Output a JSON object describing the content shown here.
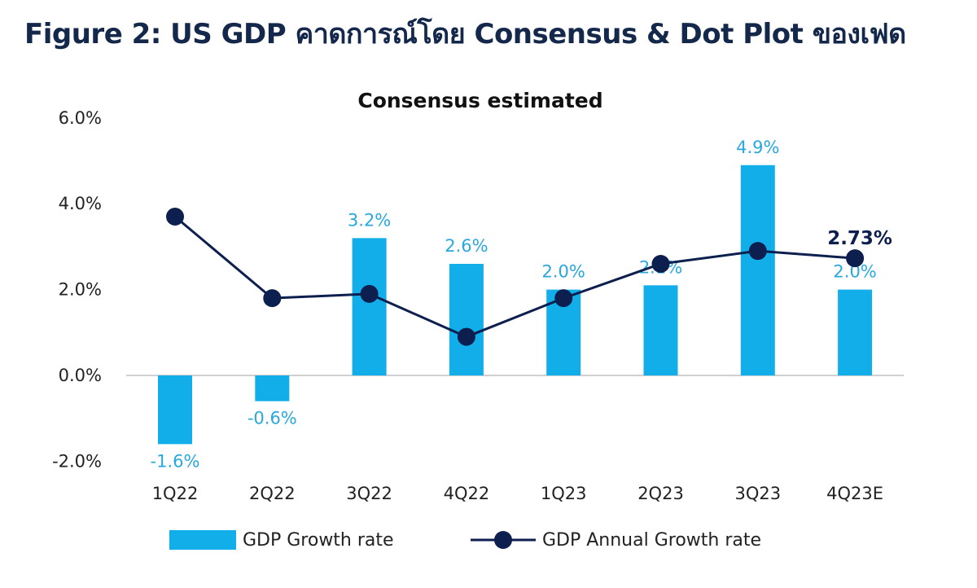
{
  "figure_title": "Figure 2: US GDP คาดการณ์โดย Consensus & Dot Plot ของเฟด",
  "colors": {
    "bar": "#12aeea",
    "line": "#0d1f4f",
    "bar_label": "#29a8df"
  },
  "chart_data": {
    "type": "bar+line",
    "title": "Consensus estimated",
    "categories": [
      "1Q22",
      "2Q22",
      "3Q22",
      "4Q22",
      "1Q23",
      "2Q23",
      "3Q23",
      "4Q23E"
    ],
    "ylim": [
      -2.0,
      6.0
    ],
    "yticks": [
      "-2.0%",
      "0.0%",
      "2.0%",
      "4.0%",
      "6.0%"
    ],
    "grid": false,
    "legend_position": "bottom",
    "series": [
      {
        "name": "GDP Growth rate",
        "type": "bar",
        "values": [
          -1.6,
          -0.6,
          3.2,
          2.6,
          2.0,
          2.1,
          4.9,
          2.0
        ],
        "labels": [
          "-1.6%",
          "-0.6%",
          "3.2%",
          "2.6%",
          "2.0%",
          "2.1%",
          "4.9%",
          "2.0%"
        ]
      },
      {
        "name": "GDP Annual Growth rate",
        "type": "line",
        "values": [
          3.7,
          1.8,
          1.9,
          0.9,
          1.8,
          2.6,
          2.9,
          2.73
        ],
        "last_label": "2.73%"
      }
    ]
  }
}
